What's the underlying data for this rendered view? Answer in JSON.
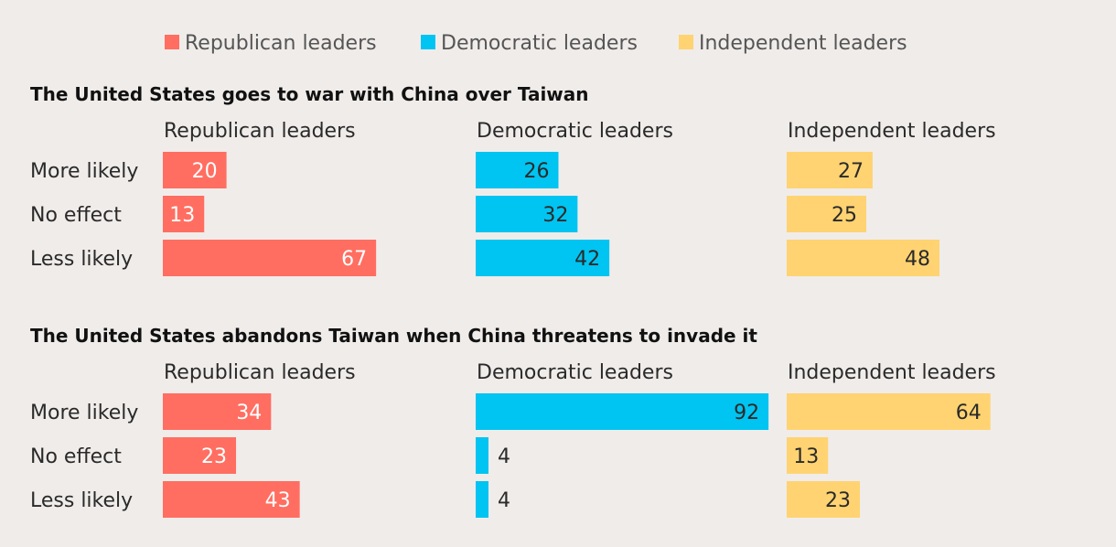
{
  "chart_data": {
    "type": "bar",
    "legend_position": "top",
    "legend": [
      {
        "label": "Republican leaders",
        "color": "#ff6e61"
      },
      {
        "label": "Democratic leaders",
        "color": "#00c4f1"
      },
      {
        "label": "Independent leaders",
        "color": "#ffd371"
      }
    ],
    "panels": [
      {
        "title": "The United States goes to war with China over Taiwan",
        "categories": [
          "More likely",
          "No effect",
          "Less likely"
        ],
        "series": [
          {
            "name": "Republican leaders",
            "values": [
              20,
              13,
              67
            ]
          },
          {
            "name": "Democratic leaders",
            "values": [
              26,
              32,
              42
            ]
          },
          {
            "name": "Independent leaders",
            "values": [
              27,
              25,
              48
            ]
          }
        ]
      },
      {
        "title": "The United States abandons Taiwan when China threatens to invade it",
        "categories": [
          "More likely",
          "No effect",
          "Less likely"
        ],
        "series": [
          {
            "name": "Republican leaders",
            "values": [
              34,
              23,
              43
            ]
          },
          {
            "name": "Democratic leaders",
            "values": [
              92,
              4,
              4
            ]
          },
          {
            "name": "Independent leaders",
            "values": [
              64,
              13,
              23
            ]
          }
        ]
      }
    ],
    "value_range": [
      0,
      100
    ],
    "grid": false
  }
}
